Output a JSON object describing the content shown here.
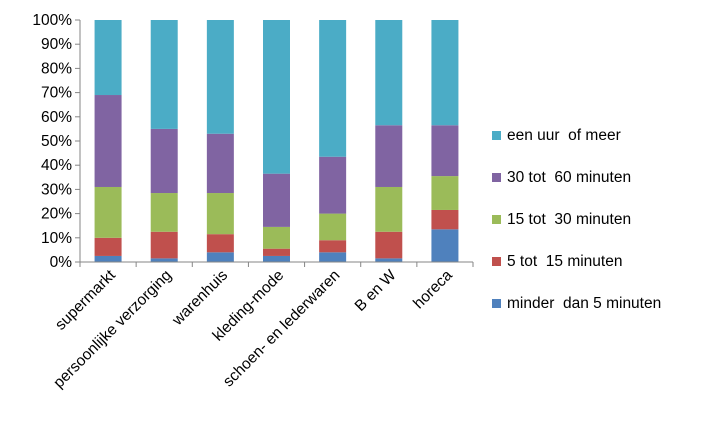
{
  "chart_data": {
    "type": "bar",
    "stacked": true,
    "categories": [
      "supermarkt",
      "persoonlijke verzorging",
      "warenhuis",
      "kleding-mode",
      "schoen- en lederwaren",
      "B en W",
      "horeca"
    ],
    "series": [
      {
        "name": "minder  dan 5 minuten",
        "color": "#4F81BD",
        "values": [
          2.5,
          1.5,
          4,
          2.5,
          4,
          1.5,
          13.5
        ]
      },
      {
        "name": "5 tot  15 minuten",
        "color": "#C0504D",
        "values": [
          7.5,
          11,
          7.5,
          3,
          5,
          11,
          8
        ]
      },
      {
        "name": "15 tot  30 minuten",
        "color": "#9BBB59",
        "values": [
          21,
          16,
          17,
          9,
          11,
          18.5,
          14
        ]
      },
      {
        "name": "30 tot  60 minuten",
        "color": "#8064A2",
        "values": [
          38,
          26.5,
          24.5,
          22,
          23.5,
          25.5,
          21
        ]
      },
      {
        "name": "een uur  of meer",
        "color": "#4BACC6",
        "values": [
          31,
          45,
          47,
          63.5,
          56.5,
          43.5,
          43.5
        ]
      }
    ],
    "ylim": [
      0,
      100
    ],
    "yticks": [
      "0%",
      "10%",
      "20%",
      "30%",
      "40%",
      "50%",
      "60%",
      "70%",
      "80%",
      "90%",
      "100%"
    ],
    "grid": false,
    "legend_position": "right",
    "legend_order": [
      "een uur  of meer",
      "30 tot  60 minuten",
      "15 tot  30 minuten",
      "5 tot  15 minuten",
      "minder  dan 5 minuten"
    ]
  }
}
